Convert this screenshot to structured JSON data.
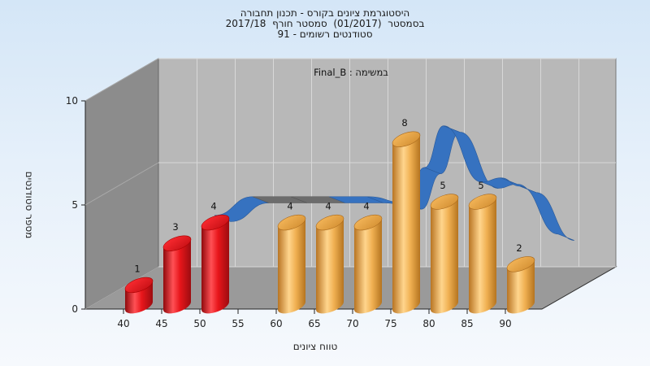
{
  "chart_data": {
    "type": "bar",
    "title_lines": [
      "היסטוגרמת ציונים בקורס - תכנון תחבורה",
      "בסמסטר  (01/2017)  סמסטר חורף  2017/18",
      "סטודנטים רשומים - 91"
    ],
    "inner_caption": "Final_B : במשימה",
    "xlabel": "טווח ציונים",
    "ylabel": "מספר סטודנטים",
    "x_ticks": [
      "40",
      "45",
      "50",
      "55",
      "60",
      "65",
      "70",
      "75",
      "80",
      "85",
      "90"
    ],
    "y_ticks": [
      "0",
      "5",
      "10"
    ],
    "ylim": [
      0,
      10
    ],
    "grid": true,
    "bars": [
      {
        "x": "40",
        "value": 1,
        "label": "1",
        "group": "fail"
      },
      {
        "x": "45",
        "value": 3,
        "label": "3",
        "group": "fail"
      },
      {
        "x": "50",
        "value": 4,
        "label": "4",
        "group": "fail"
      },
      {
        "x": "60",
        "value": 4,
        "label": "4",
        "group": "pass"
      },
      {
        "x": "65",
        "value": 4,
        "label": "4",
        "group": "pass"
      },
      {
        "x": "70",
        "value": 4,
        "label": "4",
        "group": "pass"
      },
      {
        "x": "75",
        "value": 8,
        "label": "8",
        "group": "pass"
      },
      {
        "x": "80",
        "value": 5,
        "label": "5",
        "group": "pass"
      },
      {
        "x": "85",
        "value": 5,
        "label": "5",
        "group": "pass"
      },
      {
        "x": "90",
        "value": 2,
        "label": "2",
        "group": "pass"
      }
    ],
    "trend_ribbon": {
      "x": [
        50,
        55,
        60,
        65,
        70,
        75,
        77.5,
        80,
        85,
        87.5,
        90,
        95
      ],
      "y": [
        4.5,
        5.4,
        5.4,
        5.4,
        5.4,
        5.1,
        6.8,
        8.8,
        6.1,
        6.3,
        5.9,
        3.6
      ]
    },
    "colors": {
      "fail": "#e8161b",
      "pass": "#f0b052",
      "ribbon": "#3672c0",
      "ribbon_gray": "#6c6c6c",
      "back_wall": "#b8b8b8",
      "side_wall": "#8c8c8c",
      "floor": "#9a9a9a"
    }
  }
}
